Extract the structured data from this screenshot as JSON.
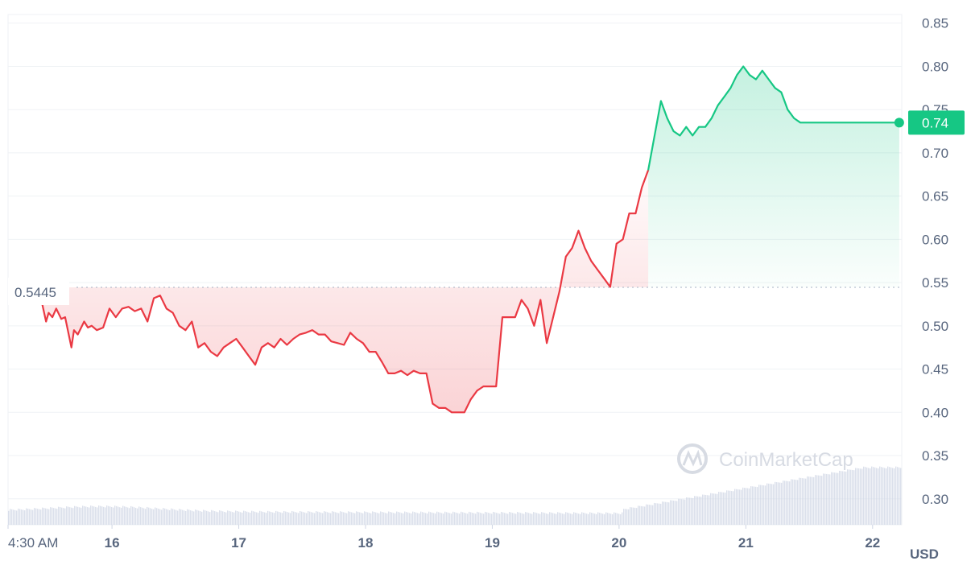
{
  "chart_data": {
    "type": "line",
    "unit": "USD",
    "watermark": "CoinMarketCap",
    "ylim": [
      0.27,
      0.86
    ],
    "y_ticks": [
      "0.85",
      "0.80",
      "0.75",
      "0.70",
      "0.65",
      "0.60",
      "0.55",
      "0.50",
      "0.45",
      "0.40",
      "0.35",
      "0.30"
    ],
    "x_ticks": [
      {
        "x": 0,
        "label": "4:30 AM"
      },
      {
        "x": 0.82,
        "label": "16"
      },
      {
        "x": 1.82,
        "label": "17"
      },
      {
        "x": 2.82,
        "label": "18"
      },
      {
        "x": 3.82,
        "label": "19"
      },
      {
        "x": 4.82,
        "label": "20"
      },
      {
        "x": 5.82,
        "label": "21"
      },
      {
        "x": 6.82,
        "label": "22"
      }
    ],
    "xlim": [
      0,
      7.05
    ],
    "reference": {
      "value": 0.5445,
      "label": "0.5445"
    },
    "current": {
      "value": 0.735,
      "label": "0.74"
    },
    "colors": {
      "up": "#16c784",
      "down": "#ea3943",
      "current_bg": "#16c784",
      "grid": "#eff2f5",
      "volume": "#cfd6e4"
    },
    "series": [
      {
        "x": [
          0.27,
          0.3,
          0.32,
          0.35,
          0.38,
          0.42,
          0.45,
          0.5,
          0.52,
          0.55,
          0.6,
          0.63,
          0.66,
          0.7,
          0.75,
          0.8,
          0.85,
          0.9,
          0.95,
          1.0,
          1.05,
          1.1,
          1.15,
          1.2,
          1.25,
          1.3,
          1.35,
          1.4,
          1.45,
          1.5,
          1.55,
          1.6,
          1.65,
          1.7,
          1.75,
          1.8,
          1.85,
          1.9,
          1.95,
          2.0,
          2.05,
          2.1,
          2.15,
          2.2,
          2.25,
          2.3,
          2.35,
          2.4,
          2.45,
          2.5,
          2.55,
          2.6,
          2.65,
          2.7,
          2.75,
          2.8,
          2.85,
          2.9,
          2.95,
          3.0,
          3.05,
          3.1,
          3.15,
          3.2,
          3.25,
          3.3,
          3.35,
          3.4,
          3.45,
          3.5,
          3.55,
          3.6,
          3.65,
          3.7,
          3.75,
          3.8,
          3.85,
          3.9,
          3.95,
          4.0,
          4.05,
          4.1,
          4.15,
          4.2,
          4.25,
          4.3,
          4.35,
          4.4,
          4.45,
          4.5,
          4.55,
          4.6,
          4.65,
          4.7,
          4.75,
          4.8,
          4.85,
          4.9,
          4.95,
          5.0,
          5.05,
          5.1,
          5.15,
          5.2,
          5.25,
          5.3,
          5.35,
          5.4,
          5.45,
          5.5,
          5.55,
          5.6,
          5.65,
          5.7,
          5.75,
          5.8,
          5.85,
          5.9,
          5.95,
          6.0,
          6.05,
          6.1,
          6.15,
          6.2,
          6.25,
          6.3,
          6.35,
          6.4,
          6.45,
          6.5,
          6.55,
          6.6,
          6.65,
          6.7,
          6.75,
          6.8,
          6.85,
          6.9,
          6.95,
          7.0,
          7.03
        ],
        "y": [
          0.525,
          0.505,
          0.515,
          0.51,
          0.52,
          0.508,
          0.51,
          0.475,
          0.495,
          0.49,
          0.505,
          0.498,
          0.5,
          0.495,
          0.498,
          0.52,
          0.51,
          0.52,
          0.522,
          0.517,
          0.52,
          0.505,
          0.532,
          0.535,
          0.52,
          0.515,
          0.5,
          0.495,
          0.505,
          0.475,
          0.48,
          0.47,
          0.465,
          0.475,
          0.48,
          0.485,
          0.475,
          0.465,
          0.455,
          0.475,
          0.48,
          0.475,
          0.485,
          0.478,
          0.485,
          0.49,
          0.492,
          0.495,
          0.49,
          0.49,
          0.482,
          0.48,
          0.478,
          0.492,
          0.485,
          0.48,
          0.47,
          0.47,
          0.458,
          0.445,
          0.445,
          0.448,
          0.443,
          0.448,
          0.445,
          0.445,
          0.41,
          0.405,
          0.405,
          0.4,
          0.4,
          0.4,
          0.415,
          0.425,
          0.43,
          0.43,
          0.43,
          0.51,
          0.51,
          0.51,
          0.53,
          0.52,
          0.5,
          0.53,
          0.48,
          0.51,
          0.54,
          0.58,
          0.59,
          0.61,
          0.59,
          0.575,
          0.565,
          0.555,
          0.545,
          0.595,
          0.6,
          0.63,
          0.63,
          0.66,
          0.68,
          0.72,
          0.76,
          0.74,
          0.725,
          0.72,
          0.73,
          0.72,
          0.73,
          0.73,
          0.74,
          0.755,
          0.765,
          0.775,
          0.79,
          0.8,
          0.79,
          0.785,
          0.795,
          0.785,
          0.775,
          0.77,
          0.75,
          0.74,
          0.735,
          0.735,
          0.735,
          0.735,
          0.735,
          0.735,
          0.735,
          0.735,
          0.735,
          0.735,
          0.735,
          0.735,
          0.735,
          0.735,
          0.735,
          0.735,
          0.735
        ]
      }
    ]
  }
}
